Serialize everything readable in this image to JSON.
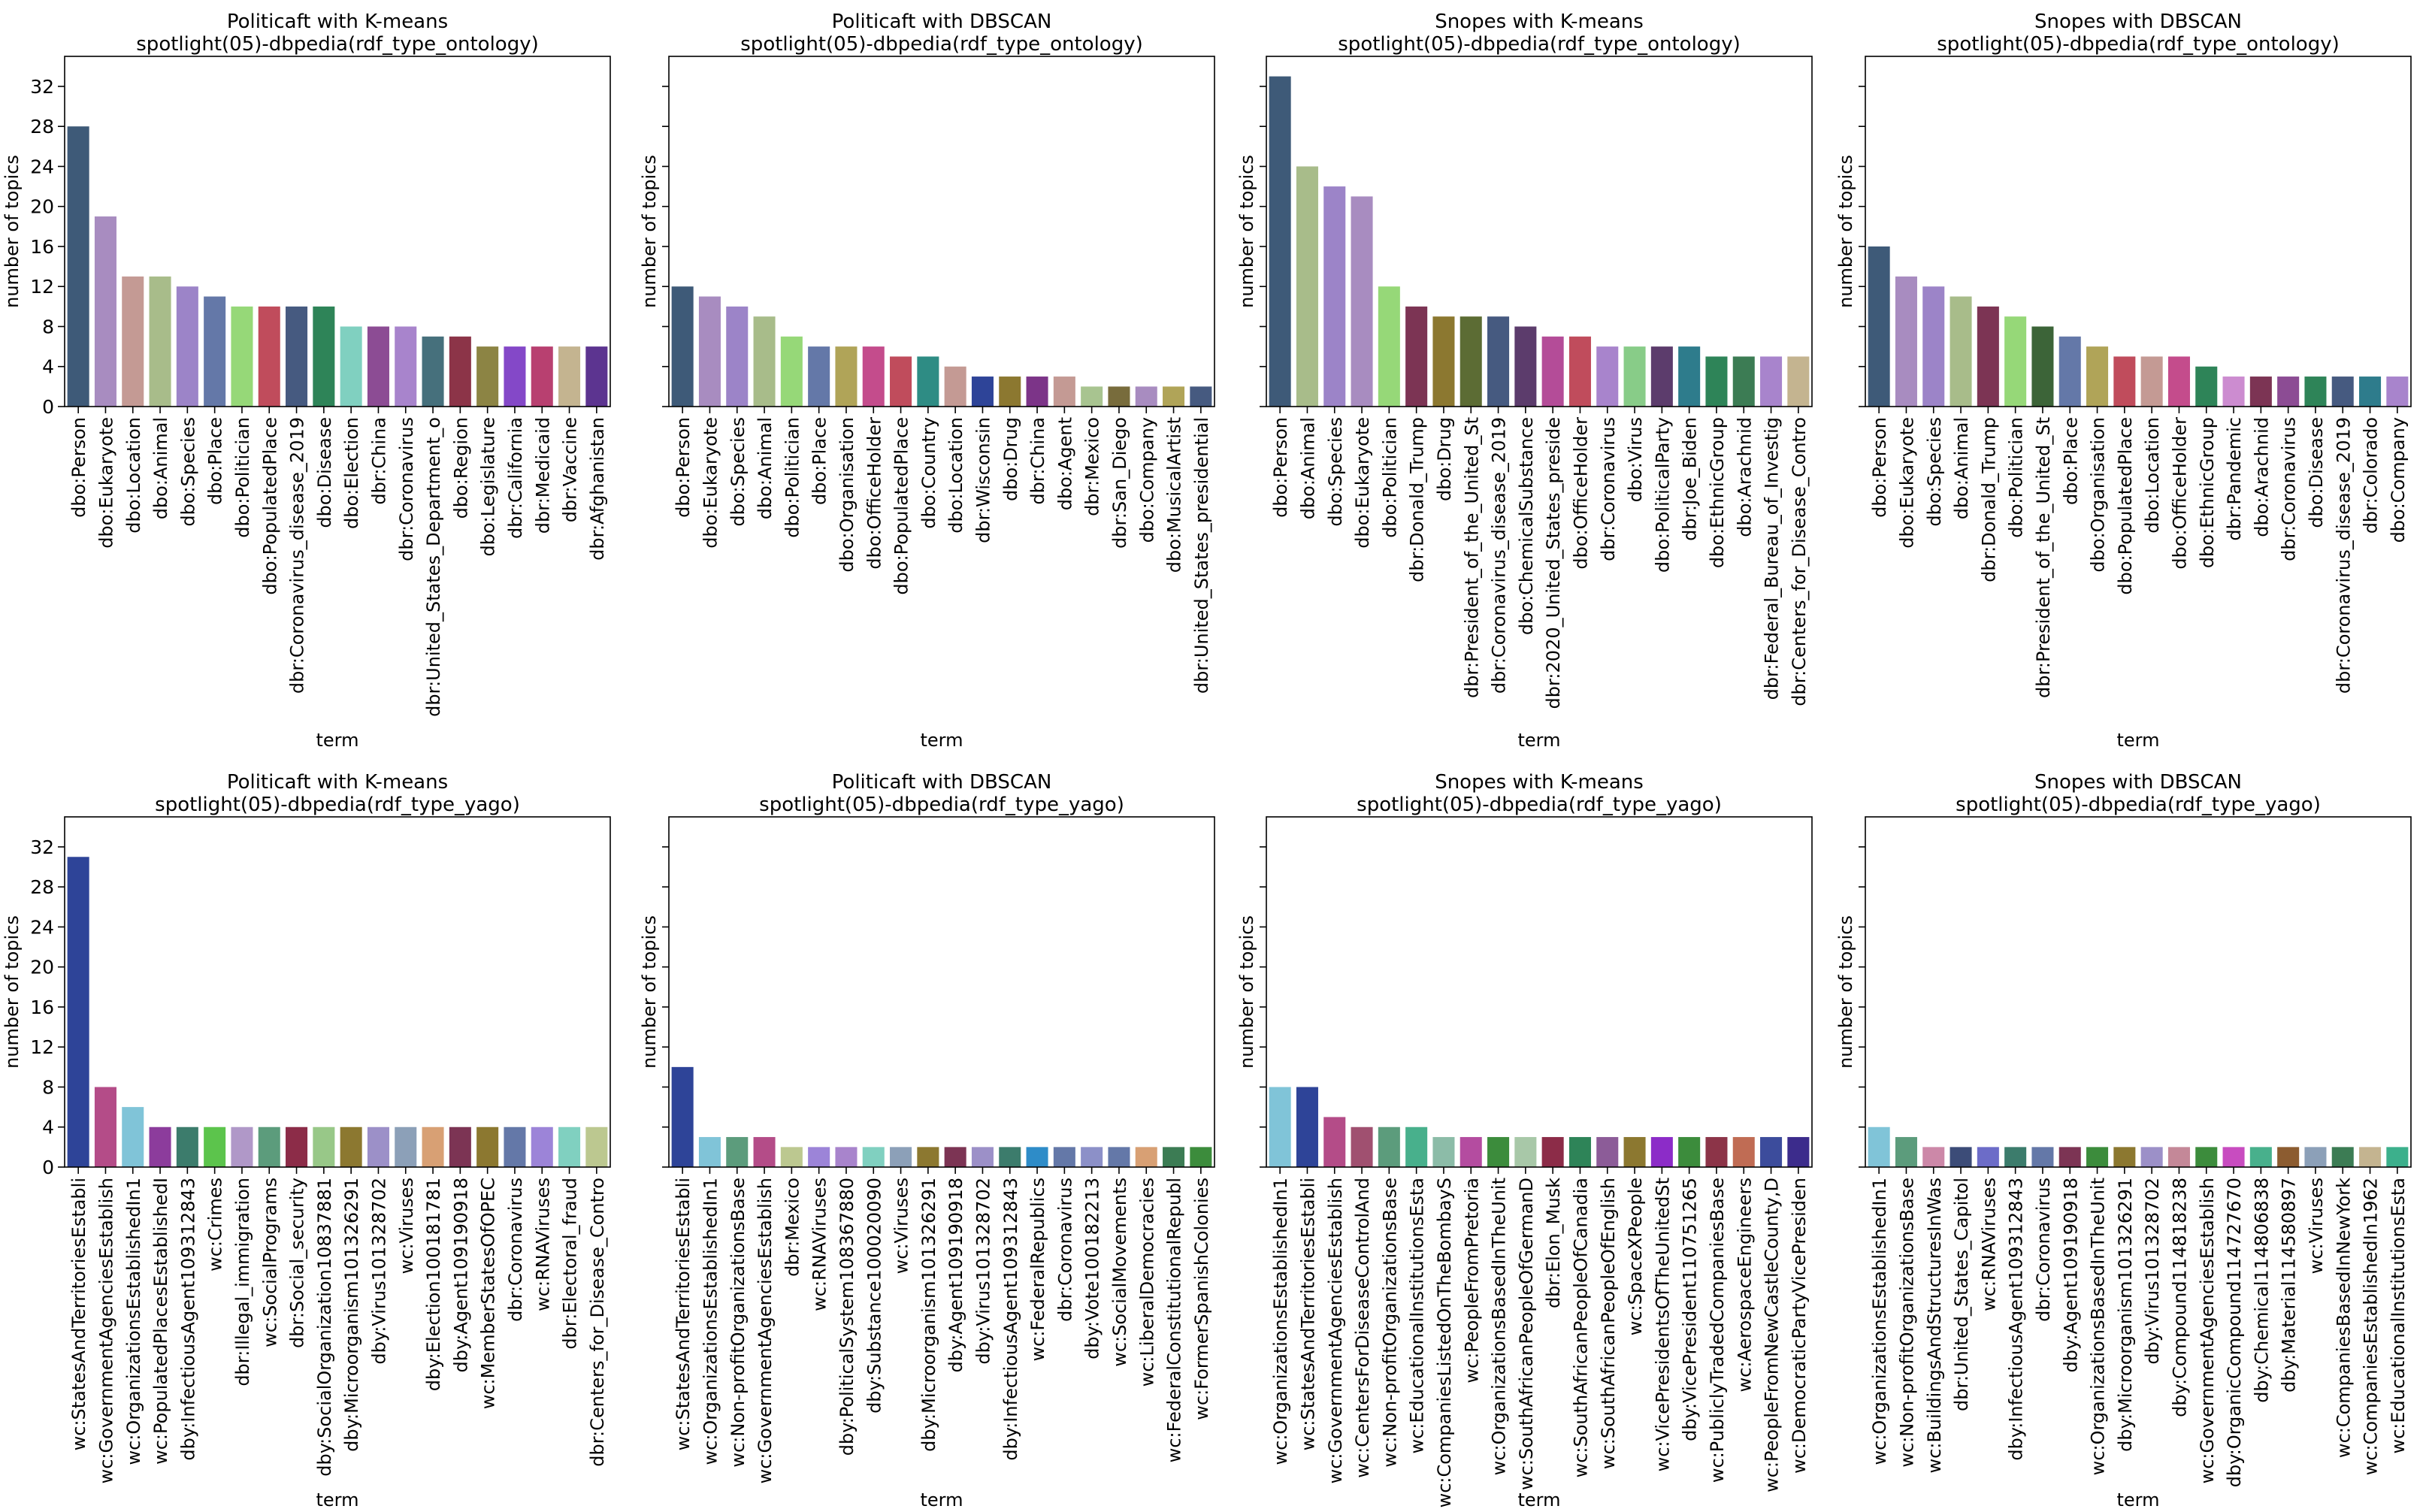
{
  "figure": {
    "ylabel": "number of topics",
    "xlabel": "term",
    "yticks": [
      0,
      4,
      8,
      12,
      16,
      20,
      24,
      28,
      32
    ]
  },
  "chart_data": [
    {
      "type": "bar",
      "title": "Politicaft with K-means",
      "subtitle": "spotlight(05)-dbpedia(rdf_type_ontology)",
      "xlabel": "term",
      "ylabel": "number of topics",
      "ylim": [
        0,
        35
      ],
      "categories": [
        "dbo:Person",
        "dbo:Eukaryote",
        "dbo:Location",
        "dbo:Animal",
        "dbo:Species",
        "dbo:Place",
        "dbo:Politician",
        "dbo:PopulatedPlace",
        "dbr:Coronavirus_disease_2019",
        "dbo:Disease",
        "dbo:Election",
        "dbr:China",
        "dbr:Coronavirus",
        "dbr:United_States_Department_o",
        "dbo:Region",
        "dbo:Legislature",
        "dbr:California",
        "dbr:Medicaid",
        "dbr:Vaccine",
        "dbr:Afghanistan"
      ],
      "values": [
        28,
        19,
        13,
        13,
        12,
        11,
        10,
        10,
        10,
        10,
        8,
        8,
        8,
        7,
        7,
        6,
        6,
        6,
        6,
        6
      ],
      "colors": [
        "#3e5a78",
        "#a88cc0",
        "#c49a94",
        "#a8bc8a",
        "#9c84c8",
        "#6478a8",
        "#96d878",
        "#c04c5c",
        "#465a80",
        "#2e8458",
        "#80d0c0",
        "#8c4c94",
        "#a884cc",
        "#46707c",
        "#8c3448",
        "#8c8444",
        "#8448c8",
        "#b84070",
        "#c4b490",
        "#5c3490"
      ]
    },
    {
      "type": "bar",
      "title": "Politicaft with DBSCAN",
      "subtitle": "spotlight(05)-dbpedia(rdf_type_ontology)",
      "xlabel": "term",
      "ylabel": "number of topics",
      "ylim": [
        0,
        35
      ],
      "categories": [
        "dbo:Person",
        "dbo:Eukaryote",
        "dbo:Species",
        "dbo:Animal",
        "dbo:Politician",
        "dbo:Place",
        "dbo:Organisation",
        "dbo:OfficeHolder",
        "dbo:PopulatedPlace",
        "dbo:Country",
        "dbo:Location",
        "dbr:Wisconsin",
        "dbo:Drug",
        "dbr:China",
        "dbo:Agent",
        "dbr:Mexico",
        "dbr:San_Diego",
        "dbo:Company",
        "dbo:MusicalArtist",
        "dbr:United_States_presidential"
      ],
      "values": [
        12,
        11,
        10,
        9,
        7,
        6,
        6,
        6,
        5,
        5,
        4,
        3,
        3,
        3,
        3,
        2,
        2,
        2,
        2,
        2
      ],
      "colors": [
        "#3e5a78",
        "#a88cc0",
        "#9c84c8",
        "#a8bc8a",
        "#96d878",
        "#6478a8",
        "#b0a458",
        "#c44c8c",
        "#c04c5c",
        "#2e8c84",
        "#c49a94",
        "#2e4498",
        "#8c7830",
        "#7c3488",
        "#c49a94",
        "#a8c490",
        "#786c3c",
        "#a88cc0",
        "#b0a458",
        "#465a80"
      ]
    },
    {
      "type": "bar",
      "title": "Snopes with K-means",
      "subtitle": "spotlight(05)-dbpedia(rdf_type_ontology)",
      "xlabel": "term",
      "ylabel": "number of topics",
      "ylim": [
        0,
        35
      ],
      "categories": [
        "dbo:Person",
        "dbo:Animal",
        "dbo:Species",
        "dbo:Eukaryote",
        "dbo:Politician",
        "dbr:Donald_Trump",
        "dbo:Drug",
        "dbr:President_of_the_United_St",
        "dbr:Coronavirus_disease_2019",
        "dbo:ChemicalSubstance",
        "dbr:2020_United_States_preside",
        "dbo:OfficeHolder",
        "dbr:Coronavirus",
        "dbo:Virus",
        "dbo:PoliticalParty",
        "dbr:Joe_Biden",
        "dbo:EthnicGroup",
        "dbo:Arachnid",
        "dbr:Federal_Bureau_of_Investig",
        "dbr:Centers_for_Disease_Contro"
      ],
      "values": [
        33,
        24,
        22,
        21,
        12,
        10,
        9,
        9,
        9,
        8,
        7,
        7,
        6,
        6,
        6,
        6,
        5,
        5,
        5,
        5
      ],
      "colors": [
        "#3e5a78",
        "#a8bc8a",
        "#9c84c8",
        "#a88cc0",
        "#96d878",
        "#7c3454",
        "#8c7830",
        "#5c6c34",
        "#465a80",
        "#5c3c6c",
        "#b44c98",
        "#c04c5c",
        "#a884cc",
        "#88cc88",
        "#5c3c6c",
        "#2e7c8c",
        "#2e8458",
        "#3c7c54",
        "#a884cc",
        "#c4b490"
      ]
    },
    {
      "type": "bar",
      "title": "Snopes with DBSCAN",
      "subtitle": "spotlight(05)-dbpedia(rdf_type_ontology)",
      "xlabel": "term",
      "ylabel": "number of topics",
      "ylim": [
        0,
        35
      ],
      "categories": [
        "dbo:Person",
        "dbo:Eukaryote",
        "dbo:Species",
        "dbo:Animal",
        "dbr:Donald_Trump",
        "dbo:Politician",
        "dbr:President_of_the_United_St",
        "dbo:Place",
        "dbo:Organisation",
        "dbo:PopulatedPlace",
        "dbo:Location",
        "dbo:OfficeHolder",
        "dbo:EthnicGroup",
        "dbr:Pandemic",
        "dbo:Arachnid",
        "dbr:Coronavirus",
        "dbo:Disease",
        "dbr:Coronavirus_disease_2019",
        "dbr:Colorado",
        "dbo:Company"
      ],
      "values": [
        16,
        13,
        12,
        11,
        10,
        9,
        8,
        7,
        6,
        5,
        5,
        5,
        4,
        3,
        3,
        3,
        3,
        3,
        3,
        3
      ],
      "colors": [
        "#3e5a78",
        "#a88cc0",
        "#9c84c8",
        "#a8bc8a",
        "#7c3454",
        "#96d878",
        "#3c6438",
        "#6478a8",
        "#b0a458",
        "#c04c5c",
        "#c49a94",
        "#c44c8c",
        "#2e8458",
        "#cc8cd0",
        "#7c3454",
        "#8c4c94",
        "#2e8458",
        "#465a80",
        "#2e7c8c",
        "#a884cc"
      ]
    },
    {
      "type": "bar",
      "title": "Politicaft with K-means",
      "subtitle": "spotlight(05)-dbpedia(rdf_type_yago)",
      "xlabel": "term",
      "ylabel": "number of topics",
      "ylim": [
        0,
        35
      ],
      "categories": [
        "wc:StatesAndTerritoriesEstabli",
        "wc:GovernmentAgenciesEstablish",
        "wc:OrganizationsEstablishedIn1",
        "wc:PopulatedPlacesEstablishedI",
        "dby:InfectiousAgent109312843",
        "wc:Crimes",
        "dbr:Illegal_immigration",
        "wc:SocialPrograms",
        "dbr:Social_security",
        "dby:SocialOrganization10837881",
        "dby:Microorganism101326291",
        "dby:Virus101328702",
        "wc:Viruses",
        "dby:Election100181781",
        "dby:Agent109190918",
        "wc:MemberStatesOfOPEC",
        "dbr:Coronavirus",
        "wc:RNAViruses",
        "dbr:Electoral_fraud",
        "dbr:Centers_for_Disease_Contro"
      ],
      "values": [
        31,
        8,
        6,
        4,
        4,
        4,
        4,
        4,
        4,
        4,
        4,
        4,
        4,
        4,
        4,
        4,
        4,
        4,
        4,
        4
      ],
      "colors": [
        "#2e4498",
        "#b44c88",
        "#80c4d8",
        "#8c3c9c",
        "#3c7c6c",
        "#5cc44c",
        "#b098c8",
        "#5c9c7c",
        "#8c2c48",
        "#98c888",
        "#8c7830",
        "#9c90c8",
        "#8ca0b8",
        "#d8a074",
        "#7c3454",
        "#8c7830",
        "#6478a8",
        "#9c84d8",
        "#80d0c0",
        "#bcc890"
      ]
    },
    {
      "type": "bar",
      "title": "Politicaft with DBSCAN",
      "subtitle": "spotlight(05)-dbpedia(rdf_type_yago)",
      "xlabel": "term",
      "ylabel": "number of topics",
      "ylim": [
        0,
        35
      ],
      "categories": [
        "wc:StatesAndTerritoriesEstabli",
        "wc:OrganizationsEstablishedIn1",
        "wc:Non-profitOrganizationsBase",
        "wc:GovernmentAgenciesEstablish",
        "dbr:Mexico",
        "wc:RNAViruses",
        "dby:PoliticalSystem108367880",
        "dby:Substance100020090",
        "wc:Viruses",
        "dby:Microorganism101326291",
        "dby:Agent109190918",
        "dby:Virus101328702",
        "dby:InfectiousAgent109312843",
        "wc:FederalRepublics",
        "dbr:Coronavirus",
        "dby:Vote100182213",
        "wc:SocialMovements",
        "wc:LiberalDemocracies",
        "wc:FederalConstitutionalRepubl",
        "wc:FormerSpanishColonies"
      ],
      "values": [
        10,
        3,
        3,
        3,
        2,
        2,
        2,
        2,
        2,
        2,
        2,
        2,
        2,
        2,
        2,
        2,
        2,
        2,
        2,
        2
      ],
      "colors": [
        "#2e4498",
        "#80c4d8",
        "#5c9c7c",
        "#b44c88",
        "#bcc890",
        "#9c84d8",
        "#a884cc",
        "#80d0c0",
        "#8ca0b8",
        "#8c7830",
        "#7c3454",
        "#9c90c8",
        "#3c7c6c",
        "#2e8cc8",
        "#6478a8",
        "#8c90c8",
        "#6478a8",
        "#d8a074",
        "#3c7c54",
        "#3c8c3c"
      ]
    },
    {
      "type": "bar",
      "title": "Snopes with K-means",
      "subtitle": "spotlight(05)-dbpedia(rdf_type_yago)",
      "xlabel": "term",
      "ylabel": "number of topics",
      "ylim": [
        0,
        35
      ],
      "categories": [
        "wc:OrganizationsEstablishedIn1",
        "wc:StatesAndTerritoriesEstabli",
        "wc:GovernmentAgenciesEstablish",
        "wc:CentersForDiseaseControlAnd",
        "wc:Non-profitOrganizationsBase",
        "wc:EducationalInstitutionsEsta",
        "wc:CompaniesListedOnTheBombayS",
        "wc:PeopleFromPretoria",
        "wc:OrganizationsBasedInTheUnit",
        "wc:SouthAfricanPeopleOfGermanD",
        "dbr:Elon_Musk",
        "wc:SouthAfricanPeopleOfCanadia",
        "wc:SouthAfricanPeopleOfEnglish",
        "wc:SpaceXPeople",
        "wc:VicePresidentsOfTheUnitedSt",
        "dby:VicePresident110751265",
        "wc:PubliclyTradedCompaniesBase",
        "wc:AerospaceEngineers",
        "wc:PeopleFromNewCastleCounty,D",
        "wc:DemocraticPartyVicePresiden"
      ],
      "values": [
        8,
        8,
        5,
        4,
        4,
        4,
        3,
        3,
        3,
        3,
        3,
        3,
        3,
        3,
        3,
        3,
        3,
        3,
        3,
        3
      ],
      "colors": [
        "#80c4d8",
        "#2e4498",
        "#b44c88",
        "#a05070",
        "#5c9c7c",
        "#48b08c",
        "#8cbca8",
        "#b44ca0",
        "#3c8c3c",
        "#a8c8a8",
        "#8c2c48",
        "#2e8458",
        "#8c5c98",
        "#8c7830",
        "#8c2cc8",
        "#3c8c3c",
        "#8c3448",
        "#c06c54",
        "#3c4c9c",
        "#3c2c8c"
      ]
    },
    {
      "type": "bar",
      "title": "Snopes with DBSCAN",
      "subtitle": "spotlight(05)-dbpedia(rdf_type_yago)",
      "xlabel": "term",
      "ylabel": "number of topics",
      "ylim": [
        0,
        35
      ],
      "categories": [
        "wc:OrganizationsEstablishedIn1",
        "wc:Non-profitOrganizationsBase",
        "wc:BuildingsAndStructuresInWas",
        "dbr:United_States_Capitol",
        "wc:RNAViruses",
        "dby:InfectiousAgent109312843",
        "dbr:Coronavirus",
        "dby:Agent109190918",
        "wc:OrganizationsBasedInTheUnit",
        "dby:Microorganism101326291",
        "dby:Virus101328702",
        "dby:Compound114818238",
        "wc:GovernmentAgenciesEstablish",
        "dby:OrganicCompound114727670",
        "dby:Chemical114806838",
        "dby:Material114580897",
        "wc:Viruses",
        "wc:CompaniesBasedInNewYork",
        "wc:CompaniesEstablishedIn1962",
        "wc:EducationalInstitutionsEsta"
      ],
      "values": [
        4,
        3,
        2,
        2,
        2,
        2,
        2,
        2,
        2,
        2,
        2,
        2,
        2,
        2,
        2,
        2,
        2,
        2,
        2,
        2
      ],
      "colors": [
        "#80c4d8",
        "#5c9c7c",
        "#cc88a8",
        "#3c4c78",
        "#6c6cc8",
        "#3c7c6c",
        "#6478a8",
        "#7c3454",
        "#3c8c3c",
        "#8c7830",
        "#9c90c8",
        "#c48898",
        "#3c8c3c",
        "#c84cc0",
        "#48b08c",
        "#8c5c30",
        "#8ca0b8",
        "#3c7c54",
        "#c4b490",
        "#3cb08c"
      ]
    }
  ]
}
